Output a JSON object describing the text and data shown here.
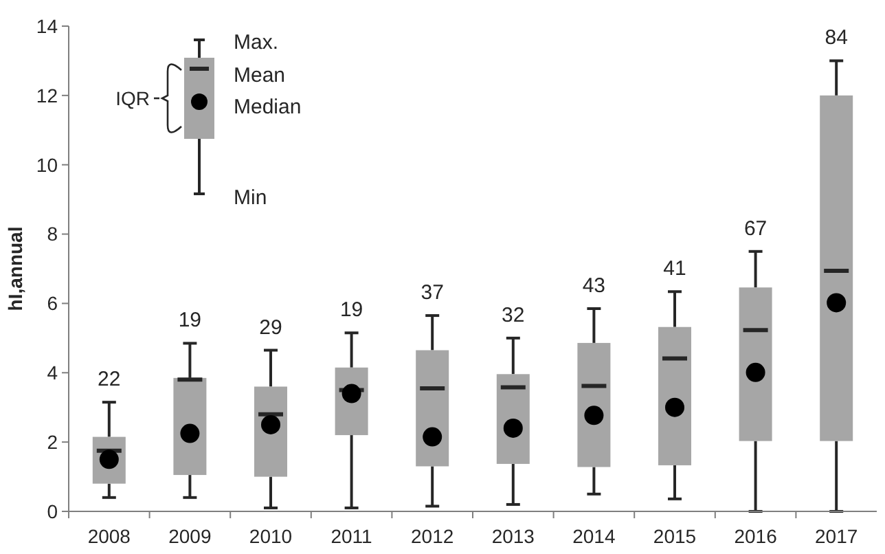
{
  "chart_data": {
    "type": "box",
    "ylabel": "hI,annual",
    "categories": [
      "2008",
      "2009",
      "2010",
      "2011",
      "2012",
      "2013",
      "2014",
      "2015",
      "2016",
      "2017"
    ],
    "color": "#a6a6a6",
    "boxes": [
      {
        "low": 0.4,
        "q1": 0.8,
        "median": 1.5,
        "q3": 2.15,
        "high": 3.15,
        "mean": 1.75
      },
      {
        "low": 0.4,
        "q1": 1.05,
        "median": 2.25,
        "q3": 3.85,
        "high": 4.85,
        "mean": 3.8
      },
      {
        "low": 0.1,
        "q1": 1.0,
        "median": 2.5,
        "q3": 3.6,
        "high": 4.65,
        "mean": 2.8
      },
      {
        "low": 0.1,
        "q1": 2.2,
        "median": 3.4,
        "q3": 4.15,
        "high": 5.15,
        "mean": 3.5
      },
      {
        "low": 0.15,
        "q1": 1.3,
        "median": 2.15,
        "q3": 4.65,
        "high": 5.65,
        "mean": 3.55
      },
      {
        "low": 0.2,
        "q1": 1.37,
        "median": 2.4,
        "q3": 3.96,
        "high": 5.0,
        "mean": 3.58
      },
      {
        "low": 0.5,
        "q1": 1.28,
        "median": 2.77,
        "q3": 4.86,
        "high": 5.85,
        "mean": 3.62
      },
      {
        "low": 0.36,
        "q1": 1.33,
        "median": 3.0,
        "q3": 5.32,
        "high": 6.34,
        "mean": 4.41
      },
      {
        "low": 0,
        "q1": 2.03,
        "median": 4.01,
        "q3": 6.46,
        "high": 7.5,
        "mean": 5.23
      },
      {
        "low": 0,
        "q1": 2.03,
        "median": 6.02,
        "q3": 12.0,
        "high": 13.0,
        "mean": 6.94
      }
    ],
    "ylim": [
      0,
      14
    ],
    "yticks": [
      0,
      2,
      4,
      6,
      8,
      10,
      12,
      14
    ],
    "grid": false,
    "annotations": [
      "Max.",
      "Mean",
      "Median",
      "Min",
      "IQR",
      {
        "text": "22",
        "x": "2008",
        "y": 3.15
      },
      {
        "text": "19",
        "x": "2009",
        "y": 4.85
      },
      {
        "text": "29",
        "x": "2010",
        "y": 4.65
      },
      {
        "text": "19",
        "x": "2011",
        "y": 5.15
      },
      {
        "text": "37",
        "x": "2012",
        "y": 5.65
      },
      {
        "text": "32",
        "x": "2013",
        "y": 5.0
      },
      {
        "text": "43",
        "x": "2014",
        "y": 5.85
      },
      {
        "text": "41",
        "x": "2015",
        "y": 6.34
      },
      {
        "text": "67",
        "x": "2016",
        "y": 7.5
      },
      {
        "text": "84",
        "x": "2017",
        "y": 13.0
      }
    ]
  }
}
